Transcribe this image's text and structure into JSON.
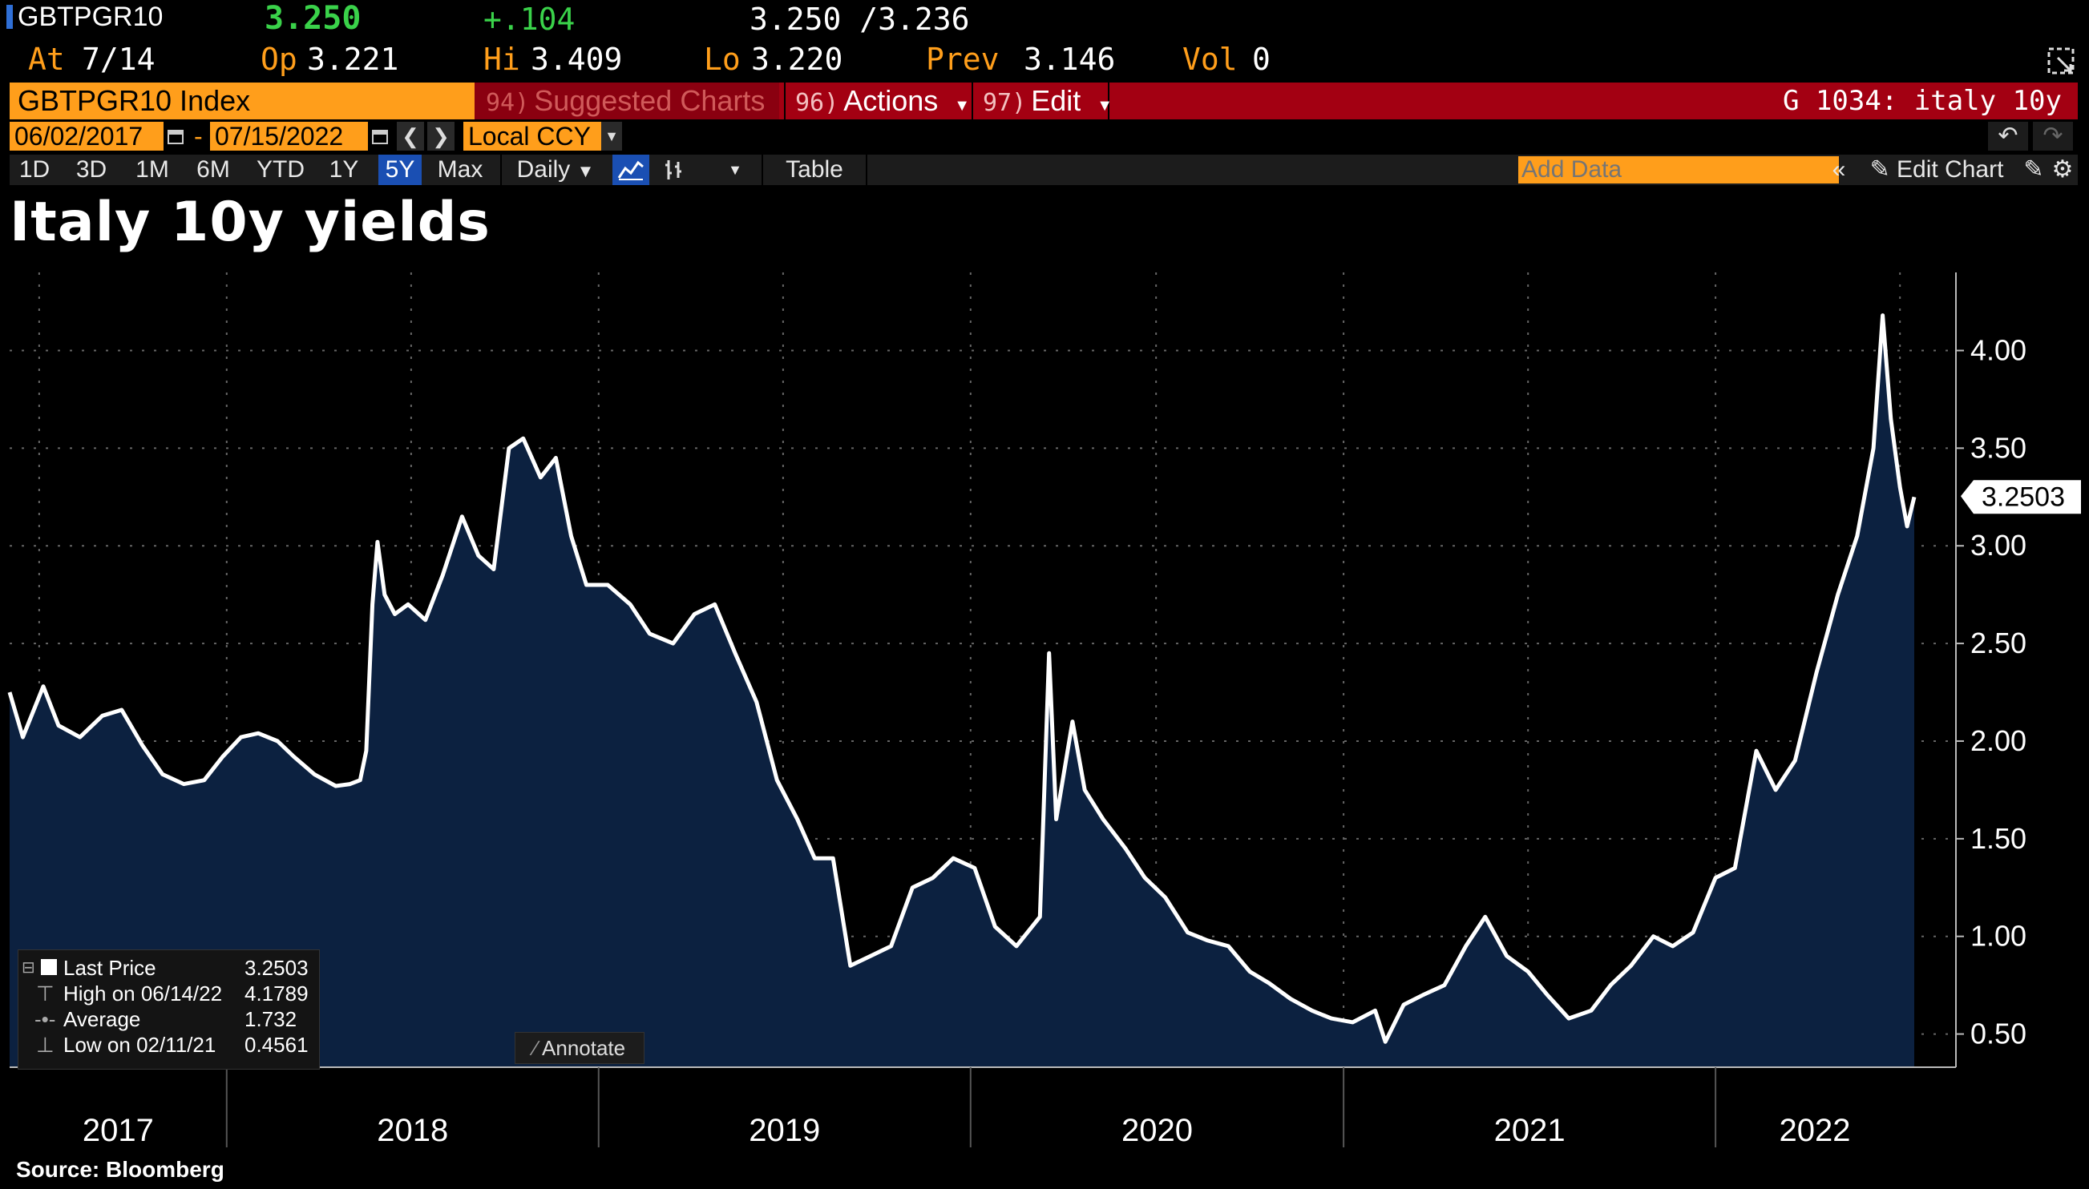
{
  "quote": {
    "ticker": "GBTPGR10",
    "last": "3.250",
    "change": "+.104",
    "bid_ask": "3.250 /3.236",
    "at_label": "At",
    "at_value": "7/14",
    "open_label": "Op",
    "open_value": "3.221",
    "high_label": "Hi",
    "high_value": "3.409",
    "low_label": "Lo",
    "low_value": "3.220",
    "prev_label": "Prev",
    "prev_value": "3.146",
    "vol_label": "Vol",
    "vol_value": "0"
  },
  "cmdbar": {
    "security": "GBTPGR10 Index",
    "suggested_num": "94)",
    "suggested_label": "Suggested Charts",
    "actions_num": "96)",
    "actions_label": "Actions",
    "edit_num": "97)",
    "edit_label": "Edit",
    "function_label": "G 1034: italy 10y"
  },
  "daterow": {
    "start_date": "06/02/2017",
    "separator": "-",
    "end_date": "07/15/2022",
    "currency": "Local CCY"
  },
  "periods": [
    "1D",
    "3D",
    "1M",
    "6M",
    "YTD",
    "1Y",
    "5Y",
    "Max"
  ],
  "active_period": "5Y",
  "frequency": "Daily",
  "table_label": "Table",
  "add_data_placeholder": "Add Data",
  "edit_chart_label": "Edit Chart",
  "icons": [
    "undo-icon",
    "redo-icon",
    "line-chart-icon",
    "bar-chart-icon",
    "calendar-icon",
    "pencil-icon",
    "settings-icon",
    "maximize-icon"
  ],
  "colors": {
    "accent": "#ff9e1b",
    "bar_red": "#a30012",
    "positive": "#3ad24a",
    "area_fill": "#0c2140",
    "line": "#ffffff"
  },
  "chart_data": {
    "type": "area",
    "title": "Italy 10y yields",
    "x_tick_labels": [
      "2017",
      "2018",
      "2019",
      "2020",
      "2021",
      "2022"
    ],
    "y_tick_labels": [
      "4.00",
      "3.50",
      "3.00",
      "2.50",
      "2.00",
      "1.50",
      "1.00",
      "0.50"
    ],
    "ylim": [
      0.33,
      4.4
    ],
    "xlim": [
      "2017-06-02",
      "2022-07-15"
    ],
    "grid": true,
    "last_value_label": "3.2503",
    "series": [
      {
        "name": "Last Price",
        "x": [
          "2017-06-02",
          "2017-06-15",
          "2017-07-05",
          "2017-07-20",
          "2017-08-10",
          "2017-09-01",
          "2017-09-20",
          "2017-10-10",
          "2017-10-30",
          "2017-11-20",
          "2017-12-10",
          "2017-12-28",
          "2018-01-15",
          "2018-02-01",
          "2018-02-20",
          "2018-03-08",
          "2018-03-28",
          "2018-04-18",
          "2018-05-02",
          "2018-05-12",
          "2018-05-18",
          "2018-05-24",
          "2018-05-29",
          "2018-06-05",
          "2018-06-15",
          "2018-06-28",
          "2018-07-15",
          "2018-08-01",
          "2018-08-20",
          "2018-09-05",
          "2018-09-20",
          "2018-10-05",
          "2018-10-19",
          "2018-11-05",
          "2018-11-20",
          "2018-12-05",
          "2018-12-20",
          "2019-01-10",
          "2019-02-01",
          "2019-02-20",
          "2019-03-15",
          "2019-04-05",
          "2019-04-25",
          "2019-05-15",
          "2019-06-05",
          "2019-06-25",
          "2019-07-15",
          "2019-08-01",
          "2019-08-19",
          "2019-09-05",
          "2019-09-25",
          "2019-10-15",
          "2019-11-05",
          "2019-11-25",
          "2019-12-15",
          "2020-01-05",
          "2020-01-25",
          "2020-02-15",
          "2020-03-09",
          "2020-03-18",
          "2020-03-25",
          "2020-04-10",
          "2020-04-22",
          "2020-05-10",
          "2020-06-01",
          "2020-06-20",
          "2020-07-10",
          "2020-08-01",
          "2020-08-20",
          "2020-09-10",
          "2020-10-01",
          "2020-10-20",
          "2020-11-10",
          "2020-12-01",
          "2020-12-20",
          "2021-01-10",
          "2021-02-01",
          "2021-02-11",
          "2021-03-01",
          "2021-03-20",
          "2021-04-10",
          "2021-05-01",
          "2021-05-20",
          "2021-06-10",
          "2021-07-01",
          "2021-07-20",
          "2021-08-10",
          "2021-09-01",
          "2021-09-20",
          "2021-10-10",
          "2021-11-01",
          "2021-11-20",
          "2021-12-10",
          "2022-01-01",
          "2022-01-20",
          "2022-02-10",
          "2022-03-01",
          "2022-03-20",
          "2022-04-10",
          "2022-05-01",
          "2022-05-20",
          "2022-06-05",
          "2022-06-14",
          "2022-06-22",
          "2022-07-01",
          "2022-07-08",
          "2022-07-15"
        ],
        "values": [
          2.25,
          2.02,
          2.28,
          2.08,
          2.02,
          2.13,
          2.16,
          1.98,
          1.83,
          1.78,
          1.8,
          1.92,
          2.02,
          2.04,
          2.0,
          1.92,
          1.83,
          1.77,
          1.78,
          1.8,
          1.95,
          2.7,
          3.02,
          2.75,
          2.65,
          2.7,
          2.62,
          2.85,
          3.15,
          2.95,
          2.88,
          3.5,
          3.55,
          3.35,
          3.45,
          3.05,
          2.8,
          2.8,
          2.7,
          2.55,
          2.5,
          2.65,
          2.7,
          2.45,
          2.2,
          1.8,
          1.6,
          1.4,
          1.4,
          0.85,
          0.9,
          0.95,
          1.25,
          1.3,
          1.4,
          1.35,
          1.05,
          0.95,
          1.1,
          2.45,
          1.6,
          2.1,
          1.75,
          1.6,
          1.45,
          1.3,
          1.2,
          1.02,
          0.98,
          0.95,
          0.82,
          0.76,
          0.68,
          0.62,
          0.58,
          0.56,
          0.62,
          0.46,
          0.65,
          0.7,
          0.75,
          0.95,
          1.1,
          0.9,
          0.82,
          0.7,
          0.58,
          0.62,
          0.75,
          0.85,
          1.0,
          0.95,
          1.02,
          1.3,
          1.35,
          1.95,
          1.75,
          1.9,
          2.35,
          2.75,
          3.05,
          3.5,
          4.18,
          3.65,
          3.3,
          3.1,
          3.25
        ]
      }
    ]
  },
  "legend": {
    "last_label": "Last Price",
    "last_value": "3.2503",
    "high_label": "High on 06/14/22",
    "high_value": "4.1789",
    "avg_label": "Average",
    "avg_value": "1.732",
    "low_label": "Low on 02/11/21",
    "low_value": "0.4561"
  },
  "annotate_label": "Annotate",
  "source": "Source:  Bloomberg"
}
